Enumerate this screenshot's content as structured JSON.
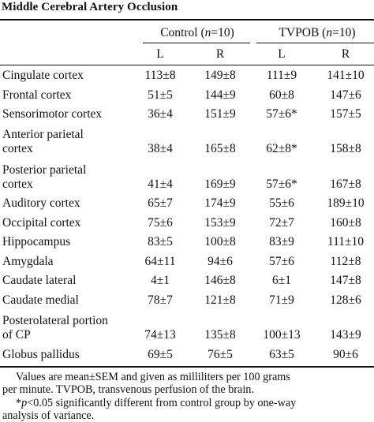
{
  "title": "Middle Cerebral Artery Occlusion",
  "groups": [
    {
      "name": "Control",
      "n_label": "n",
      "n_value": "=10"
    },
    {
      "name": "TVPOB",
      "n_label": "n",
      "n_value": "=10"
    }
  ],
  "sides": [
    "L",
    "R",
    "L",
    "R"
  ],
  "rows": [
    {
      "label": [
        "Cingulate cortex"
      ],
      "values": [
        "113±8",
        "149±8",
        "111±9",
        "141±10"
      ]
    },
    {
      "label": [
        "Frontal cortex"
      ],
      "values": [
        "51±5",
        "144±9",
        "60±8",
        "147±6"
      ]
    },
    {
      "label": [
        "Sensorimotor cortex"
      ],
      "values": [
        "36±4",
        "151±9",
        "57±6*",
        "157±5"
      ]
    },
    {
      "label": [
        "Anterior parietal",
        "cortex"
      ],
      "values": [
        "38±4",
        "165±8",
        "62±8*",
        "158±8"
      ]
    },
    {
      "label": [
        "Posterior parietal",
        "cortex"
      ],
      "values": [
        "41±4",
        "169±9",
        "57±6*",
        "167±8"
      ]
    },
    {
      "label": [
        "Auditory cortex"
      ],
      "values": [
        "65±7",
        "174±9",
        "55±6",
        "189±10"
      ]
    },
    {
      "label": [
        "Occipital cortex"
      ],
      "values": [
        "75±6",
        "153±9",
        "72±7",
        "160±8"
      ]
    },
    {
      "label": [
        "Hippocampus"
      ],
      "values": [
        "83±5",
        "100±8",
        "83±9",
        "111±10"
      ]
    },
    {
      "label": [
        "Amygdala"
      ],
      "values": [
        "64±11",
        "94±6",
        "57±6",
        "112±8"
      ]
    },
    {
      "label": [
        "Caudate lateral"
      ],
      "values": [
        "4±1",
        "146±8",
        "6±1",
        "147±8"
      ]
    },
    {
      "label": [
        "Caudate medial"
      ],
      "values": [
        "78±7",
        "121±8",
        "71±9",
        "128±6"
      ]
    },
    {
      "label": [
        "Posterolateral portion",
        "of CP"
      ],
      "values": [
        "74±13",
        "135±8",
        "100±13",
        "143±9"
      ]
    },
    {
      "label": [
        "Globus pallidus"
      ],
      "values": [
        "69±5",
        "76±5",
        "63±5",
        "90±6"
      ]
    }
  ],
  "footnotes": {
    "line1": "Values are mean±SEM and given as milliliters per 100 grams",
    "line2": "per minute. TVPOB, transvenous perfusion of the brain.",
    "line3_prefix": "*",
    "line3_p": "p",
    "line3_rest": "<0.05 significantly different from control group by one-way",
    "line4": "analysis of variance."
  }
}
